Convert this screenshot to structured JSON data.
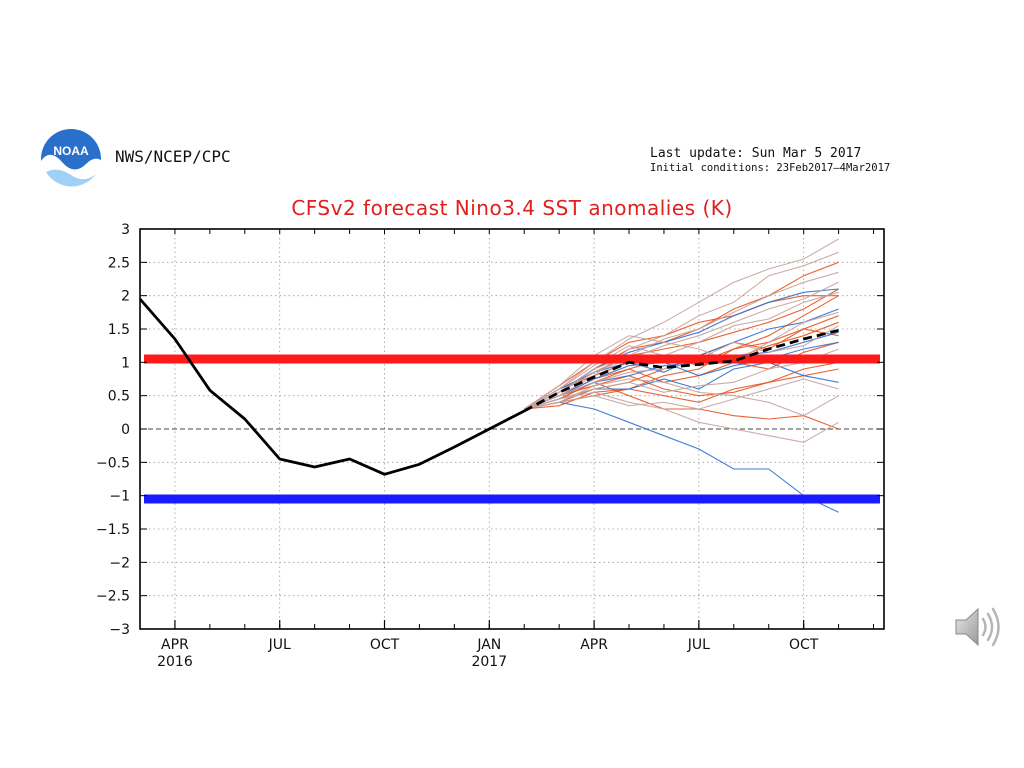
{
  "header": {
    "agency": "NWS/NCEP/CPC",
    "last_update": "Last update: Sun Mar 5 2017",
    "initial_conditions": "Initial conditions: 23Feb2017–4Mar2017",
    "logo_text": "NOAA"
  },
  "icons": {
    "logo": "noaa-logo-icon",
    "speaker": "speaker-icon"
  },
  "colors": {
    "title": "#e0201c",
    "observed": "#000000",
    "ensemble_mean": "#000000",
    "ensemble_red": "#e8531f",
    "ensemble_blue": "#2f6fd1",
    "ensemble_gray": "#c4a49e",
    "el_nino_threshold": "#ff1a1a",
    "la_nina_threshold": "#1a1aff"
  },
  "chart_data": {
    "type": "line",
    "title": "CFSv2 forecast Nino3.4 SST anomalies (K)",
    "x_unit": "months since Mar 2016",
    "xlim": [
      0,
      21.3
    ],
    "ylim": [
      -3,
      3
    ],
    "yticks": [
      3,
      2.5,
      2,
      1.5,
      1,
      0.5,
      0,
      -0.5,
      -1,
      -1.5,
      -2,
      -2.5,
      -3
    ],
    "ytick_labels": [
      "3",
      "2.5",
      "2",
      "1.5",
      "1",
      "0.5",
      "0",
      "−0.5",
      "−1",
      "−1.5",
      "−2",
      "−2.5",
      "−3"
    ],
    "xticks": [
      {
        "x": 1,
        "label": "APR",
        "sub": "2016"
      },
      {
        "x": 4,
        "label": "JUL",
        "sub": ""
      },
      {
        "x": 7,
        "label": "OCT",
        "sub": ""
      },
      {
        "x": 10,
        "label": "JAN",
        "sub": "2017"
      },
      {
        "x": 13,
        "label": "APR",
        "sub": ""
      },
      {
        "x": 16,
        "label": "JUL",
        "sub": ""
      },
      {
        "x": 19,
        "label": "OCT",
        "sub": ""
      }
    ],
    "grid": true,
    "thresholds": [
      {
        "name": "el-nino-threshold",
        "y": 1.05,
        "color": "#ff1a1a"
      },
      {
        "name": "la-nina-threshold",
        "y": -1.05,
        "color": "#1a1aff"
      }
    ],
    "observed": {
      "x": [
        0,
        1,
        2,
        3,
        4,
        5,
        6,
        7,
        8,
        9,
        10,
        11
      ],
      "y": [
        1.95,
        1.35,
        0.58,
        0.15,
        -0.45,
        -0.57,
        -0.45,
        -0.68,
        -0.53,
        -0.27,
        0.0,
        0.27
      ]
    },
    "ensemble_mean": {
      "x": [
        11,
        12,
        13,
        14,
        15,
        16,
        17,
        18,
        19,
        20
      ],
      "y": [
        0.27,
        0.55,
        0.78,
        1.0,
        0.92,
        0.97,
        1.02,
        1.2,
        1.35,
        1.48
      ]
    },
    "ensemble_members": [
      {
        "color": "red",
        "x": [
          11,
          12,
          13,
          14,
          15,
          16,
          17,
          18,
          19,
          20
        ],
        "y": [
          0.3,
          0.4,
          0.5,
          0.6,
          0.8,
          0.9,
          1.2,
          1.4,
          1.7,
          2.0
        ]
      },
      {
        "color": "red",
        "x": [
          11,
          12,
          13,
          14,
          15,
          16,
          17,
          18,
          19,
          20
        ],
        "y": [
          0.3,
          0.55,
          0.9,
          1.2,
          1.3,
          1.5,
          1.8,
          2.0,
          2.3,
          2.5
        ]
      },
      {
        "color": "red",
        "x": [
          11,
          12,
          13,
          14,
          15,
          16,
          17,
          18,
          19,
          20
        ],
        "y": [
          0.3,
          0.45,
          0.7,
          0.5,
          0.3,
          0.3,
          0.2,
          0.15,
          0.2,
          0.0
        ]
      },
      {
        "color": "red",
        "x": [
          11,
          12,
          13,
          14,
          15,
          16,
          17,
          18,
          19,
          20
        ],
        "y": [
          0.3,
          0.6,
          0.8,
          1.0,
          1.1,
          0.95,
          1.05,
          1.25,
          1.4,
          1.6
        ]
      },
      {
        "color": "red",
        "x": [
          11,
          12,
          13,
          14,
          15,
          16,
          17,
          18,
          19,
          20
        ],
        "y": [
          0.3,
          0.5,
          0.75,
          0.9,
          0.7,
          0.8,
          1.0,
          0.9,
          1.15,
          1.3
        ]
      },
      {
        "color": "red",
        "x": [
          11,
          12,
          13,
          14,
          15,
          16,
          17,
          18,
          19,
          20
        ],
        "y": [
          0.3,
          0.35,
          0.55,
          0.6,
          0.5,
          0.4,
          0.6,
          0.7,
          0.9,
          1.0
        ]
      },
      {
        "color": "red",
        "x": [
          11,
          12,
          13,
          14,
          15,
          16,
          17,
          18,
          19,
          20
        ],
        "y": [
          0.3,
          0.65,
          1.0,
          1.3,
          1.4,
          1.6,
          1.7,
          1.9,
          2.0,
          2.0
        ]
      },
      {
        "color": "red",
        "x": [
          11,
          12,
          13,
          14,
          15,
          16,
          17,
          18,
          19,
          20
        ],
        "y": [
          0.3,
          0.4,
          0.6,
          0.7,
          0.9,
          1.1,
          1.3,
          1.2,
          1.5,
          1.7
        ]
      },
      {
        "color": "red",
        "x": [
          11,
          12,
          13,
          14,
          15,
          16,
          17,
          18,
          19,
          20
        ],
        "y": [
          0.3,
          0.5,
          0.65,
          0.8,
          0.6,
          0.5,
          0.55,
          0.7,
          0.8,
          0.9
        ]
      },
      {
        "color": "red",
        "x": [
          11,
          12,
          13,
          14,
          15,
          16,
          17,
          18,
          19,
          20
        ],
        "y": [
          0.3,
          0.55,
          0.85,
          1.1,
          1.2,
          1.3,
          1.45,
          1.6,
          1.8,
          2.1
        ]
      },
      {
        "color": "red",
        "x": [
          11,
          12,
          13,
          14,
          15,
          16,
          17,
          18,
          19,
          20
        ],
        "y": [
          0.3,
          0.45,
          0.7,
          0.9,
          1.05,
          1.0,
          1.2,
          1.3,
          1.5,
          1.4
        ]
      },
      {
        "color": "blue",
        "x": [
          11,
          12,
          13,
          14,
          15,
          16,
          17,
          18,
          19,
          20
        ],
        "y": [
          0.3,
          0.4,
          0.3,
          0.1,
          -0.1,
          -0.3,
          -0.6,
          -0.6,
          -1.0,
          -1.25
        ]
      },
      {
        "color": "blue",
        "x": [
          11,
          12,
          13,
          14,
          15,
          16,
          17,
          18,
          19,
          20
        ],
        "y": [
          0.3,
          0.55,
          0.9,
          1.15,
          1.3,
          1.45,
          1.7,
          1.9,
          2.05,
          2.1
        ]
      },
      {
        "color": "blue",
        "x": [
          11,
          12,
          13,
          14,
          15,
          16,
          17,
          18,
          19,
          20
        ],
        "y": [
          0.3,
          0.5,
          0.7,
          0.8,
          0.95,
          1.0,
          1.1,
          1.15,
          1.3,
          1.45
        ]
      },
      {
        "color": "blue",
        "x": [
          11,
          12,
          13,
          14,
          15,
          16,
          17,
          18,
          19,
          20
        ],
        "y": [
          0.3,
          0.45,
          0.6,
          0.6,
          0.75,
          0.6,
          0.9,
          1.0,
          0.8,
          0.7
        ]
      },
      {
        "color": "blue",
        "x": [
          11,
          12,
          13,
          14,
          15,
          16,
          17,
          18,
          19,
          20
        ],
        "y": [
          0.3,
          0.6,
          0.85,
          1.0,
          0.85,
          1.1,
          1.3,
          1.5,
          1.6,
          1.8
        ]
      },
      {
        "color": "blue",
        "x": [
          11,
          12,
          13,
          14,
          15,
          16,
          17,
          18,
          19,
          20
        ],
        "y": [
          0.3,
          0.5,
          0.75,
          0.95,
          1.0,
          0.8,
          0.95,
          1.05,
          1.2,
          1.3
        ]
      },
      {
        "color": "gray",
        "x": [
          11,
          12,
          13,
          14,
          15,
          16,
          17,
          18,
          19,
          20
        ],
        "y": [
          0.3,
          0.6,
          1.0,
          1.35,
          1.6,
          1.9,
          2.2,
          2.4,
          2.55,
          2.85
        ]
      },
      {
        "color": "gray",
        "x": [
          11,
          12,
          13,
          14,
          15,
          16,
          17,
          18,
          19,
          20
        ],
        "y": [
          0.3,
          0.5,
          0.8,
          1.2,
          1.4,
          1.7,
          1.9,
          2.3,
          2.45,
          2.65
        ]
      },
      {
        "color": "gray",
        "x": [
          11,
          12,
          13,
          14,
          15,
          16,
          17,
          18,
          19,
          20
        ],
        "y": [
          0.3,
          0.45,
          0.55,
          0.4,
          0.3,
          0.1,
          0.0,
          -0.1,
          -0.2,
          0.1
        ]
      },
      {
        "color": "gray",
        "x": [
          11,
          12,
          13,
          14,
          15,
          16,
          17,
          18,
          19,
          20
        ],
        "y": [
          0.3,
          0.55,
          0.9,
          1.1,
          1.35,
          1.5,
          1.75,
          2.0,
          2.2,
          2.35
        ]
      },
      {
        "color": "gray",
        "x": [
          11,
          12,
          13,
          14,
          15,
          16,
          17,
          18,
          19,
          20
        ],
        "y": [
          0.3,
          0.4,
          0.65,
          0.75,
          0.7,
          0.55,
          0.5,
          0.4,
          0.2,
          0.5
        ]
      },
      {
        "color": "gray",
        "x": [
          11,
          12,
          13,
          14,
          15,
          16,
          17,
          18,
          19,
          20
        ],
        "y": [
          0.3,
          0.6,
          0.95,
          1.25,
          1.1,
          1.3,
          1.55,
          1.65,
          1.9,
          2.05
        ]
      },
      {
        "color": "gray",
        "x": [
          11,
          12,
          13,
          14,
          15,
          16,
          17,
          18,
          19,
          20
        ],
        "y": [
          0.3,
          0.5,
          0.7,
          0.85,
          0.9,
          1.05,
          1.3,
          1.15,
          1.25,
          1.55
        ]
      },
      {
        "color": "gray",
        "x": [
          11,
          12,
          13,
          14,
          15,
          16,
          17,
          18,
          19,
          20
        ],
        "y": [
          0.3,
          0.45,
          0.6,
          0.7,
          0.55,
          0.65,
          0.7,
          0.9,
          1.0,
          1.2
        ]
      },
      {
        "color": "gray",
        "x": [
          11,
          12,
          13,
          14,
          15,
          16,
          17,
          18,
          19,
          20
        ],
        "y": [
          0.3,
          0.55,
          0.85,
          1.05,
          1.25,
          1.4,
          1.6,
          1.8,
          1.95,
          2.2
        ]
      },
      {
        "color": "gray",
        "x": [
          11,
          12,
          13,
          14,
          15,
          16,
          17,
          18,
          19,
          20
        ],
        "y": [
          0.3,
          0.65,
          1.1,
          1.4,
          1.3,
          1.2,
          1.0,
          1.3,
          1.6,
          1.75
        ]
      },
      {
        "color": "gray",
        "x": [
          11,
          12,
          13,
          14,
          15,
          16,
          17,
          18,
          19,
          20
        ],
        "y": [
          0.3,
          0.4,
          0.5,
          0.35,
          0.4,
          0.3,
          0.45,
          0.6,
          0.75,
          0.6
        ]
      }
    ]
  }
}
